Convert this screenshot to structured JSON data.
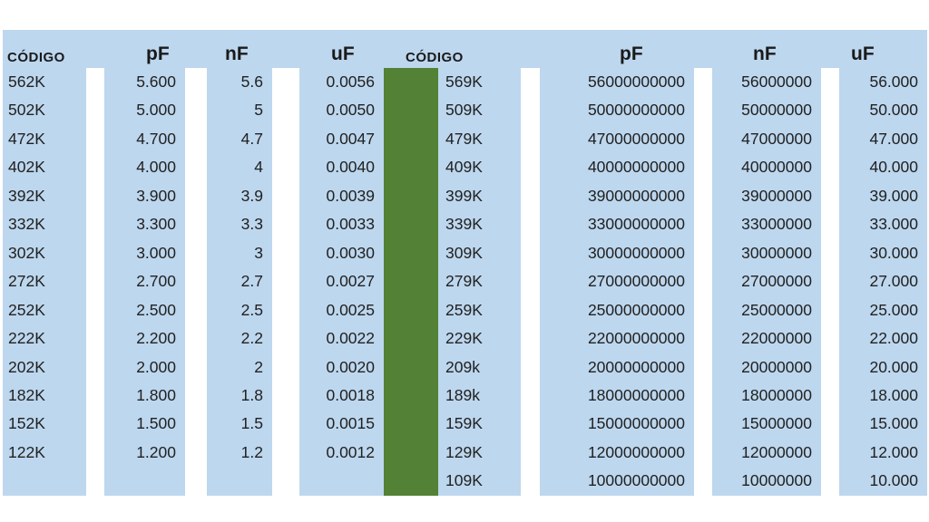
{
  "colors": {
    "cell_bg": "#BDD7EE",
    "divider_green": "#538135",
    "text": "#212121",
    "page_bg": "#FFFFFF"
  },
  "chart_data": {
    "type": "table",
    "title": "",
    "left_table": {
      "headers": {
        "codigo": "CÓDIGO",
        "pf": "pF",
        "nf": "nF",
        "uf": "uF"
      },
      "rows": [
        {
          "codigo": "562K",
          "pf": "5.600",
          "nf": "5.6",
          "uf": "0.0056"
        },
        {
          "codigo": "502K",
          "pf": "5.000",
          "nf": "5",
          "uf": "0.0050"
        },
        {
          "codigo": "472K",
          "pf": "4.700",
          "nf": "4.7",
          "uf": "0.0047"
        },
        {
          "codigo": "402K",
          "pf": "4.000",
          "nf": "4",
          "uf": "0.0040"
        },
        {
          "codigo": "392K",
          "pf": "3.900",
          "nf": "3.9",
          "uf": "0.0039"
        },
        {
          "codigo": "332K",
          "pf": "3.300",
          "nf": "3.3",
          "uf": "0.0033"
        },
        {
          "codigo": "302K",
          "pf": "3.000",
          "nf": "3",
          "uf": "0.0030"
        },
        {
          "codigo": "272K",
          "pf": "2.700",
          "nf": "2.7",
          "uf": "0.0027"
        },
        {
          "codigo": "252K",
          "pf": "2.500",
          "nf": "2.5",
          "uf": "0.0025"
        },
        {
          "codigo": "222K",
          "pf": "2.200",
          "nf": "2.2",
          "uf": "0.0022"
        },
        {
          "codigo": "202K",
          "pf": "2.000",
          "nf": "2",
          "uf": "0.0020"
        },
        {
          "codigo": "182K",
          "pf": "1.800",
          "nf": "1.8",
          "uf": "0.0018"
        },
        {
          "codigo": "152K",
          "pf": "1.500",
          "nf": "1.5",
          "uf": "0.0015"
        },
        {
          "codigo": "122K",
          "pf": "1.200",
          "nf": "1.2",
          "uf": "0.0012"
        }
      ]
    },
    "right_table": {
      "headers": {
        "codigo": "CÓDIGO",
        "pf": "pF",
        "nf": "nF",
        "uf": "uF"
      },
      "rows": [
        {
          "codigo": "569K",
          "pf": "56000000000",
          "nf": "56000000",
          "uf": "56.000"
        },
        {
          "codigo": "509K",
          "pf": "50000000000",
          "nf": "50000000",
          "uf": "50.000"
        },
        {
          "codigo": "479K",
          "pf": "47000000000",
          "nf": "47000000",
          "uf": "47.000"
        },
        {
          "codigo": "409K",
          "pf": "40000000000",
          "nf": "40000000",
          "uf": "40.000"
        },
        {
          "codigo": "399K",
          "pf": "39000000000",
          "nf": "39000000",
          "uf": "39.000"
        },
        {
          "codigo": "339K",
          "pf": "33000000000",
          "nf": "33000000",
          "uf": "33.000"
        },
        {
          "codigo": "309K",
          "pf": "30000000000",
          "nf": "30000000",
          "uf": "30.000"
        },
        {
          "codigo": "279K",
          "pf": "27000000000",
          "nf": "27000000",
          "uf": "27.000"
        },
        {
          "codigo": "259K",
          "pf": "25000000000",
          "nf": "25000000",
          "uf": "25.000"
        },
        {
          "codigo": "229K",
          "pf": "22000000000",
          "nf": "22000000",
          "uf": "22.000"
        },
        {
          "codigo": "209k",
          "pf": "20000000000",
          "nf": "20000000",
          "uf": "20.000"
        },
        {
          "codigo": "189k",
          "pf": "18000000000",
          "nf": "18000000",
          "uf": "18.000"
        },
        {
          "codigo": "159K",
          "pf": "15000000000",
          "nf": "15000000",
          "uf": "15.000"
        },
        {
          "codigo": "129K",
          "pf": "12000000000",
          "nf": "12000000",
          "uf": "12.000"
        },
        {
          "codigo": "109K",
          "pf": "10000000000",
          "nf": "10000000",
          "uf": "10.000"
        }
      ]
    }
  }
}
